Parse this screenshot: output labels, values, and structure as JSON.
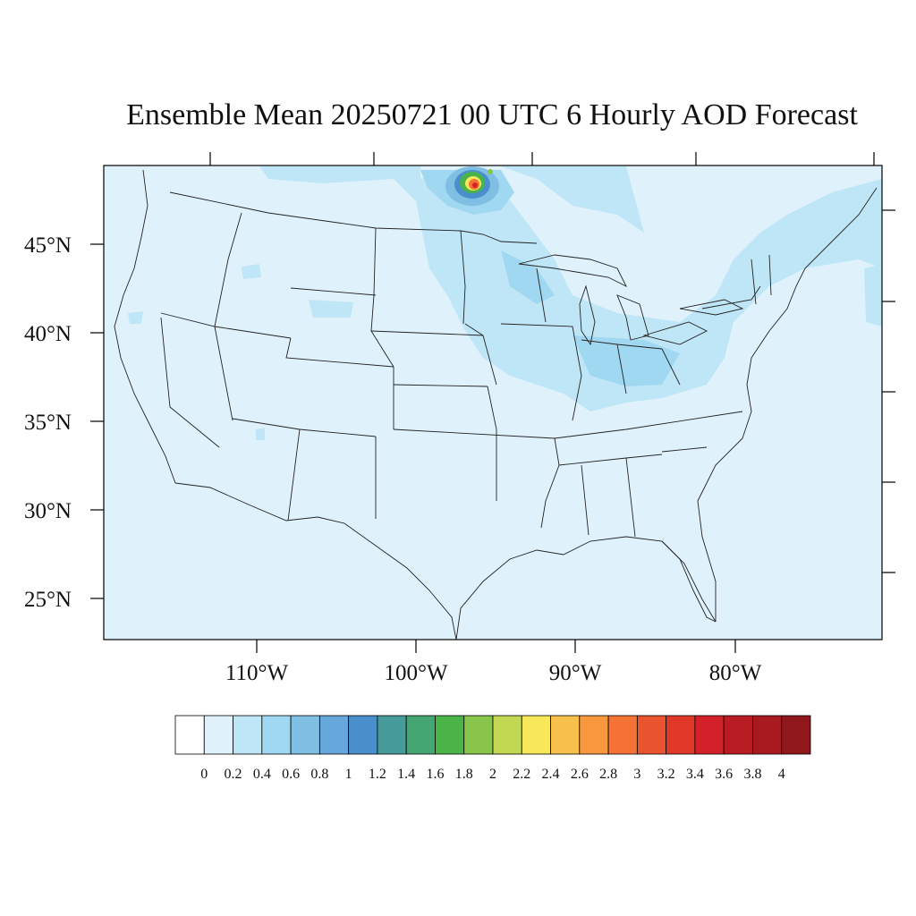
{
  "title": "Ensemble Mean 20250721 00 UTC 6 Hourly AOD Forecast",
  "map": {
    "lat_labels": [
      "45°N",
      "40°N",
      "35°N",
      "30°N",
      "25°N"
    ],
    "lon_labels": [
      "110°W",
      "100°W",
      "90°W",
      "80°W"
    ],
    "background_color": "#dff2fb"
  },
  "colorbar": {
    "labels": [
      "0",
      "0.2",
      "0.4",
      "0.6",
      "0.8",
      "1",
      "1.2",
      "1.4",
      "1.6",
      "1.8",
      "2",
      "2.2",
      "2.4",
      "2.6",
      "2.8",
      "3",
      "3.2",
      "3.4",
      "3.6",
      "3.8",
      "4"
    ],
    "colors": [
      "#ffffff",
      "#dff2fb",
      "#bfe6f7",
      "#a0d8f2",
      "#80bfe4",
      "#67a8dc",
      "#4a8ecb",
      "#489b9b",
      "#43a673",
      "#4ab449",
      "#88c54a",
      "#c3d852",
      "#f7e85a",
      "#f7c04a",
      "#f7983e",
      "#f47334",
      "#e9532e",
      "#e0392a",
      "#d3212a",
      "#ba1c24",
      "#a81a20",
      "#90171b"
    ]
  }
}
